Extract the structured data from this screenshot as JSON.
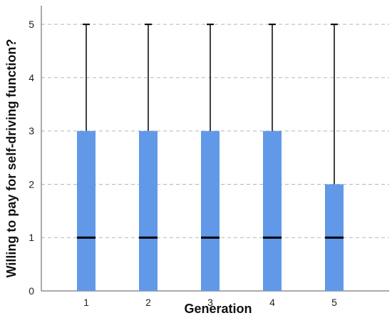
{
  "chart_data": {
    "type": "boxplot",
    "xlabel": "Generation",
    "ylabel": "Willing to pay for self-driving function?",
    "ylim": [
      0,
      5.35
    ],
    "yticks": [
      "0",
      "1",
      "2",
      "3",
      "4",
      "5"
    ],
    "grid": "horizontal-dashed",
    "colors": {
      "box": "#6199e8",
      "median": "#000000",
      "whisker": "#000000",
      "grid": "#b5b5b5"
    },
    "categories": [
      "1",
      "2",
      "3",
      "4",
      "5"
    ],
    "boxes": [
      {
        "category": "1",
        "min": 1,
        "q1": 1,
        "median": 1,
        "q3": 3,
        "max": 5
      },
      {
        "category": "2",
        "min": 1,
        "q1": 1,
        "median": 1,
        "q3": 3,
        "max": 5
      },
      {
        "category": "3",
        "min": 1,
        "q1": 1,
        "median": 1,
        "q3": 3,
        "max": 5
      },
      {
        "category": "4",
        "min": 1,
        "q1": 1,
        "median": 1,
        "q3": 3,
        "max": 5
      },
      {
        "category": "5",
        "min": 1,
        "q1": 1,
        "median": 1,
        "q3": 2,
        "max": 5
      }
    ]
  }
}
